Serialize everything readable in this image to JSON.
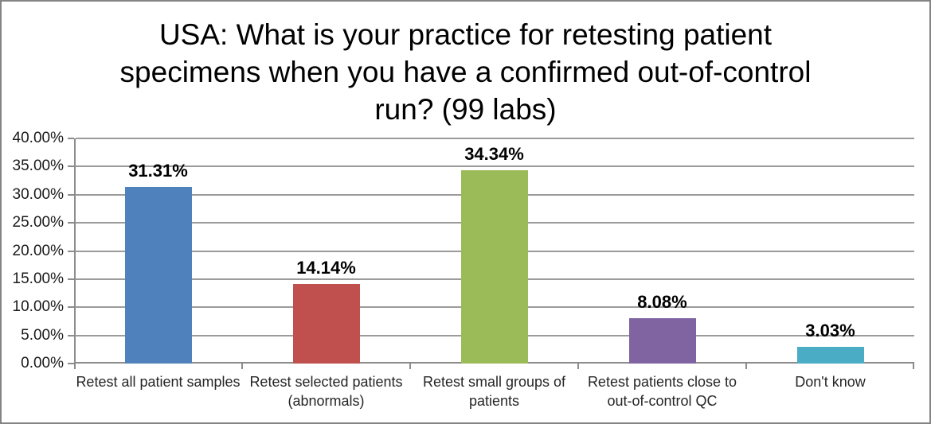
{
  "chart_data": {
    "type": "bar",
    "title": "USA: What is your practice for retesting patient specimens when you have a confirmed out-of-control run? (99 labs)",
    "title_lines": [
      "USA: What is your practice for retesting patient",
      "specimens when you have a confirmed out-of-control",
      "run? (99 labs)"
    ],
    "categories": [
      "Retest all patient samples",
      "Retest selected patients (abnormals)",
      "Retest small groups of patients",
      "Retest patients close to out-of-control QC",
      "Don't know"
    ],
    "values": [
      31.31,
      14.14,
      34.34,
      8.08,
      3.03
    ],
    "data_labels": [
      "31.31%",
      "14.14%",
      "34.34%",
      "8.08%",
      "3.03%"
    ],
    "bar_colors": [
      "#4F81BD",
      "#C0504D",
      "#9BBB59",
      "#8064A2",
      "#4BACC6"
    ],
    "xlabel": "",
    "ylabel": "",
    "ylim": [
      0,
      40
    ],
    "ytick_step": 5,
    "yticks": [
      "0.00%",
      "5.00%",
      "10.00%",
      "15.00%",
      "20.00%",
      "25.00%",
      "30.00%",
      "35.00%",
      "40.00%"
    ],
    "grid": true,
    "legend_position": "none"
  },
  "styles": {
    "grid_color": "#9b9b9b",
    "axis_color": "#8c8c8c",
    "frame_border_color": "#848484",
    "title_color": "#000000",
    "data_label_color": "#000000",
    "axis_label_color": "#1a1a1a",
    "background": "#ffffff"
  }
}
